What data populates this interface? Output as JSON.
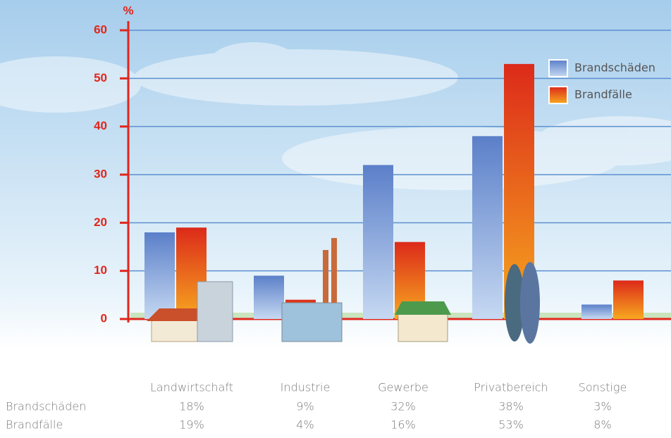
{
  "chart_data": {
    "type": "bar",
    "y_label": "%",
    "categories": [
      "Landwirtschaft",
      "Industrie",
      "Gewerbe",
      "Privatbereich",
      "Sonstige"
    ],
    "series": [
      {
        "name": "Brandschäden",
        "color": "#5b7fc9",
        "values": [
          18,
          9,
          32,
          38,
          3
        ],
        "value_labels": [
          "18%",
          "9%",
          "32%",
          "38%",
          "3%"
        ]
      },
      {
        "name": "Brandfälle",
        "color": "#dc2a1a",
        "values": [
          19,
          4,
          16,
          53,
          8
        ],
        "value_labels": [
          "19%",
          "4%",
          "16%",
          "53%",
          "8%"
        ]
      }
    ],
    "ylim": [
      0,
      60
    ],
    "yticks": [
      0,
      10,
      20,
      30,
      40,
      50,
      60
    ],
    "grid": true
  }
}
